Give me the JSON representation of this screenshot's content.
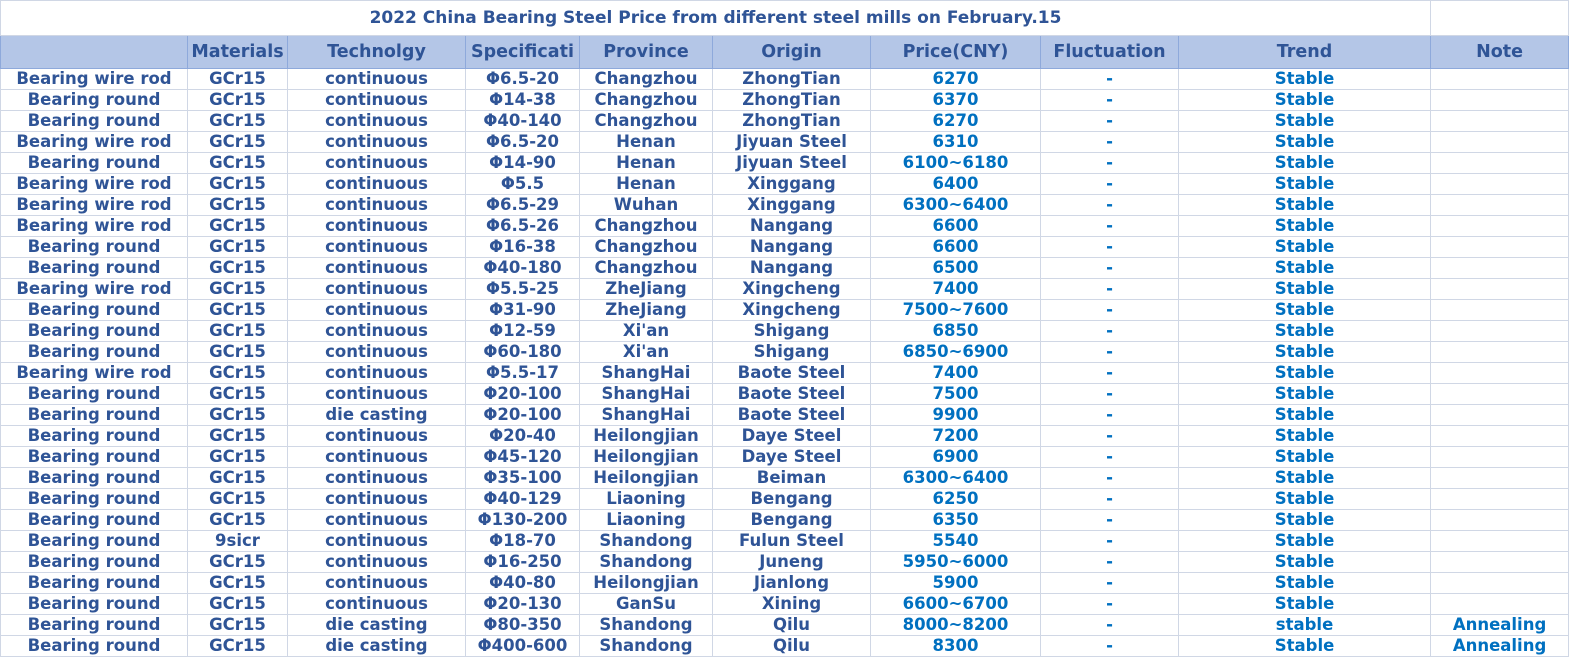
{
  "title": "2022 China Bearing Steel Price from different steel mills on  February.15",
  "table": {
    "headers": [
      "Materials",
      "Technolgy",
      "Specificati",
      "Province",
      "Origin",
      "Price(CNY)",
      "Fluctuation",
      "Trend",
      "Note"
    ],
    "rows": [
      [
        "Bearing wire rod",
        "GCr15",
        "continuous",
        "Φ6.5-20",
        "Changzhou",
        "ZhongTian",
        "6270",
        "-",
        "Stable"
      ],
      [
        "Bearing round",
        "GCr15",
        "continuous",
        "Φ14-38",
        "Changzhou",
        "ZhongTian",
        "6370",
        "-",
        "Stable"
      ],
      [
        "Bearing round",
        "GCr15",
        "continuous",
        "Φ40-140",
        "Changzhou",
        "ZhongTian",
        "6270",
        "-",
        "Stable"
      ],
      [
        "Bearing wire rod",
        "GCr15",
        "continuous",
        "Φ6.5-20",
        "Henan",
        "Jiyuan Steel",
        "6310",
        "-",
        "Stable"
      ],
      [
        "Bearing round",
        "GCr15",
        "continuous",
        "Φ14-90",
        "Henan",
        "Jiyuan Steel",
        "6100~6180",
        "-",
        "Stable"
      ],
      [
        "Bearing wire rod",
        "GCr15",
        "continuous",
        "Φ5.5",
        "Henan",
        "Xinggang",
        "6400",
        "-",
        "Stable"
      ],
      [
        "Bearing wire rod",
        "GCr15",
        "continuous",
        "Φ6.5-29",
        "Wuhan",
        "Xinggang",
        "6300~6400",
        "-",
        "Stable"
      ],
      [
        "Bearing wire rod",
        "GCr15",
        "continuous",
        "Φ6.5-26",
        "Changzhou",
        "Nangang",
        "6600",
        "-",
        "Stable"
      ],
      [
        "Bearing round",
        "GCr15",
        "continuous",
        "Φ16-38",
        "Changzhou",
        "Nangang",
        "6600",
        "-",
        "Stable"
      ],
      [
        "Bearing round",
        "GCr15",
        "continuous",
        "Φ40-180",
        "Changzhou",
        "Nangang",
        "6500",
        "-",
        "Stable"
      ],
      [
        "Bearing wire rod",
        "GCr15",
        "continuous",
        "Φ5.5-25",
        "ZheJiang",
        "Xingcheng",
        "7400",
        "-",
        "Stable"
      ],
      [
        "Bearing round",
        "GCr15",
        "continuous",
        "Φ31-90",
        "ZheJiang",
        "Xingcheng",
        "7500~7600",
        "-",
        "Stable"
      ],
      [
        "Bearing round",
        "GCr15",
        "continuous",
        "Φ12-59",
        "Xi'an",
        "Shigang",
        "6850",
        "-",
        "Stable"
      ],
      [
        "Bearing round",
        "GCr15",
        "continuous",
        "Φ60-180",
        "Xi'an",
        "Shigang",
        "6850~6900",
        "-",
        "Stable"
      ],
      [
        "Bearing wire rod",
        "GCr15",
        "continuous",
        "Φ5.5-17",
        "ShangHai",
        "Baote Steel",
        "7400",
        "-",
        "Stable"
      ],
      [
        "Bearing round",
        "GCr15",
        "continuous",
        "Φ20-100",
        "ShangHai",
        "Baote Steel",
        "7500",
        "-",
        "Stable"
      ],
      [
        "Bearing round",
        "GCr15",
        "die casting",
        "Φ20-100",
        "ShangHai",
        "Baote Steel",
        "9900",
        "-",
        "Stable"
      ],
      [
        "Bearing round",
        "GCr15",
        "continuous",
        "Φ20-40",
        "Heilongjian",
        "Daye  Steel",
        "7200",
        "-",
        "Stable"
      ],
      [
        "Bearing round",
        "GCr15",
        "continuous",
        "Φ45-120",
        "Heilongjian",
        "Daye  Steel",
        "6900",
        "-",
        "Stable"
      ],
      [
        "Bearing round",
        "GCr15",
        "continuous",
        "Φ35-100",
        "Heilongjian",
        "Beiman",
        "6300~6400",
        "-",
        "Stable"
      ],
      [
        "Bearing round",
        "GCr15",
        "continuous",
        "Φ40-129",
        "Liaoning",
        "Bengang",
        "6250",
        "-",
        "Stable"
      ],
      [
        "Bearing round",
        "GCr15",
        "continuous",
        "Φ130-200",
        "Liaoning",
        "Bengang",
        "6350",
        "-",
        "Stable"
      ],
      [
        "Bearing round",
        "9sicr",
        "continuous",
        "Φ18-70",
        "Shandong",
        "Fulun Steel",
        "5540",
        "-",
        "Stable"
      ],
      [
        "Bearing round",
        "GCr15",
        "continuous",
        "Φ16-250",
        "Shandong",
        "Juneng",
        "5950~6000",
        "-",
        "Stable"
      ],
      [
        "Bearing round",
        "GCr15",
        "continuous",
        "Φ40-80",
        "Heilongjian",
        "Jianlong",
        "5900",
        "-",
        "Stable"
      ],
      [
        "Bearing round",
        "GCr15",
        "continuous",
        "Φ20-130",
        "GanSu",
        "Xining",
        "6600~6700",
        "-",
        "Stable"
      ],
      [
        "Bearing round",
        "GCr15",
        "die casting",
        "Φ80-350",
        "Shandong",
        "Qilu",
        "8000~8200",
        "-",
        "stable",
        "Annealing"
      ],
      [
        "Bearing round",
        "GCr15",
        "die casting",
        "Φ400-600",
        "Shandong",
        "Qilu",
        "8300",
        "-",
        "Stable",
        "Annealing"
      ]
    ]
  }
}
